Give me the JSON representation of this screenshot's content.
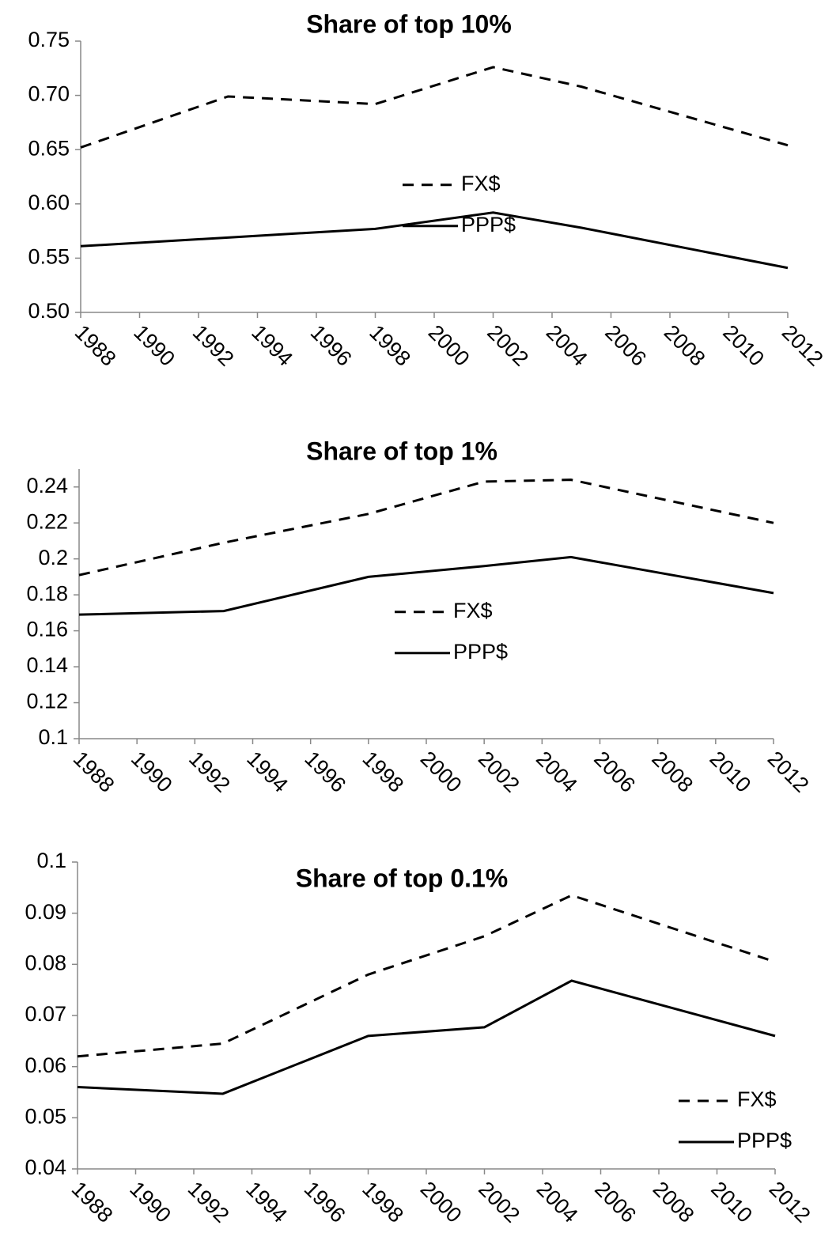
{
  "chart_data": [
    {
      "type": "line",
      "title": "Share of top 10%",
      "x": [
        1988,
        1993,
        1998,
        2002,
        2005,
        2012
      ],
      "series": [
        {
          "name": "FX$",
          "color": "#000000",
          "linestyle": "dashed",
          "values": [
            0.652,
            0.699,
            0.692,
            0.726,
            0.708,
            0.654
          ]
        },
        {
          "name": "PPP$",
          "color": "#000000",
          "linestyle": "solid",
          "values": [
            0.561,
            0.569,
            0.577,
            0.592,
            0.578,
            0.541
          ]
        }
      ],
      "xlim": [
        1988,
        2012
      ],
      "xticks": [
        1988,
        1990,
        1992,
        1994,
        1996,
        1998,
        2000,
        2002,
        2004,
        2006,
        2008,
        2010,
        2012
      ],
      "ylim": [
        0.5,
        0.75
      ],
      "yticks": [
        {
          "value": 0.5,
          "label": "0.50"
        },
        0.55,
        {
          "value": 0.6,
          "label": "0.60"
        },
        0.65,
        {
          "value": 0.7,
          "label": "0.70"
        },
        0.75
      ],
      "grid": false,
      "legend": "center"
    },
    {
      "type": "line",
      "title": "Share of top 1%",
      "x": [
        1988,
        1993,
        1998,
        2002,
        2005,
        2012
      ],
      "series": [
        {
          "name": "FX$",
          "color": "#000000",
          "linestyle": "dashed",
          "values": [
            0.191,
            0.209,
            0.225,
            0.243,
            0.244,
            0.22
          ]
        },
        {
          "name": "PPP$",
          "color": "#000000",
          "linestyle": "solid",
          "values": [
            0.169,
            0.171,
            0.19,
            0.196,
            0.201,
            0.181
          ]
        }
      ],
      "xlim": [
        1988,
        2012
      ],
      "xticks": [
        1988,
        1990,
        1992,
        1994,
        1996,
        1998,
        2000,
        2002,
        2004,
        2006,
        2008,
        2010,
        2012
      ],
      "ylim": [
        0.1,
        0.25
      ],
      "yticks": [
        0.1,
        0.12,
        0.14,
        0.16,
        0.18,
        0.2,
        0.22,
        0.24
      ],
      "grid": false,
      "legend": "center"
    },
    {
      "type": "line",
      "title": "Share of top 0.1%",
      "x": [
        1988,
        1993,
        1998,
        2002,
        2005,
        2012
      ],
      "series": [
        {
          "name": "FX$",
          "color": "#000000",
          "linestyle": "dashed",
          "values": [
            0.062,
            0.0645,
            0.078,
            0.0855,
            0.0935,
            0.0805
          ]
        },
        {
          "name": "PPP$",
          "color": "#000000",
          "linestyle": "solid",
          "values": [
            0.056,
            0.0547,
            0.066,
            0.0677,
            0.0768,
            0.066
          ]
        }
      ],
      "xlim": [
        1988,
        2012
      ],
      "xticks": [
        1988,
        1990,
        1992,
        1994,
        1996,
        1998,
        2000,
        2002,
        2004,
        2006,
        2008,
        2010,
        2012
      ],
      "ylim": [
        0.04,
        0.1
      ],
      "yticks": [
        0.04,
        0.05,
        0.06,
        0.07,
        0.08,
        0.09,
        0.1
      ],
      "grid": false,
      "legend": "lower right"
    }
  ]
}
